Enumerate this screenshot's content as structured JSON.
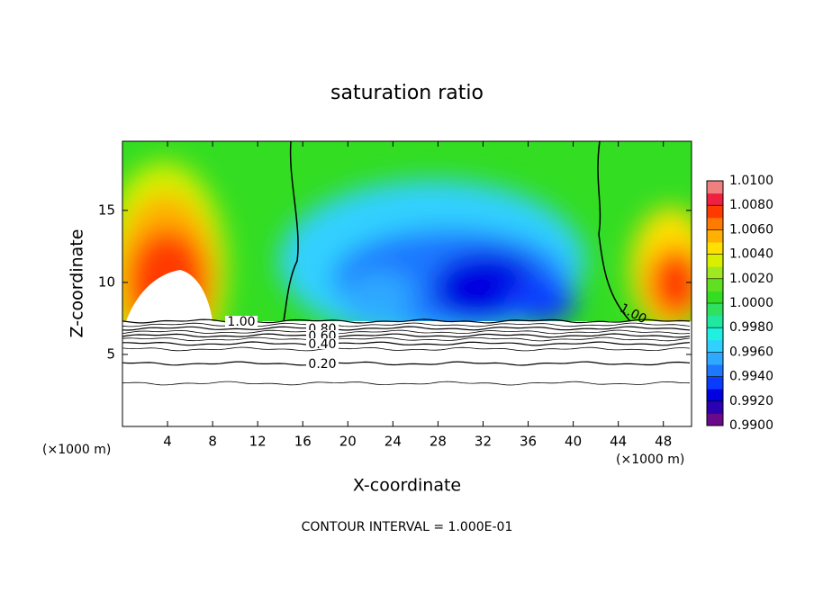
{
  "chart_data": {
    "type": "contour",
    "title": "saturation ratio",
    "x_label": "X-coordinate",
    "y_label": "Z-coordinate",
    "x_unit": "(×1000 m)",
    "xlim": [
      0,
      50.5
    ],
    "xticks": [
      4,
      8,
      12,
      16,
      20,
      24,
      28,
      32,
      36,
      40,
      44,
      48
    ],
    "ylim": [
      0,
      19.8
    ],
    "yticks": [
      5,
      10,
      15
    ],
    "colorbar": {
      "lim": [
        0.99,
        1.01
      ],
      "ticks": [
        {
          "value": 0.99,
          "label": "0.9900"
        },
        {
          "value": 0.992,
          "label": "0.9920"
        },
        {
          "value": 0.994,
          "label": "0.9940"
        },
        {
          "value": 0.996,
          "label": "0.9960"
        },
        {
          "value": 0.998,
          "label": "0.9980"
        },
        {
          "value": 1.0,
          "label": "1.0000"
        },
        {
          "value": 1.002,
          "label": "1.0020"
        },
        {
          "value": 1.004,
          "label": "1.0040"
        },
        {
          "value": 1.006,
          "label": "1.0060"
        },
        {
          "value": 1.008,
          "label": "1.0080"
        },
        {
          "value": 1.01,
          "label": "1.0100"
        }
      ],
      "colors": [
        "#6a0a8a",
        "#2a00b0",
        "#0000e0",
        "#0a3cff",
        "#1e78ff",
        "#2fa8ff",
        "#30d0ff",
        "#20f0e0",
        "#20e8a0",
        "#30e060",
        "#33dd22",
        "#60e020",
        "#a0e820",
        "#d8f000",
        "#ffe000",
        "#ffb000",
        "#ff7a00",
        "#ff3a00",
        "#f02040",
        "#f08080"
      ]
    },
    "contour_levels": [
      {
        "value": 1.0,
        "label": "1.00"
      },
      {
        "value": 0.8,
        "label": "0.80"
      },
      {
        "value": 0.6,
        "label": "0.60"
      },
      {
        "value": 0.4,
        "label": "0.40"
      },
      {
        "value": 0.2,
        "label": "0.20"
      }
    ],
    "footer": "CONTOUR INTERVAL = 1.000E-01"
  }
}
